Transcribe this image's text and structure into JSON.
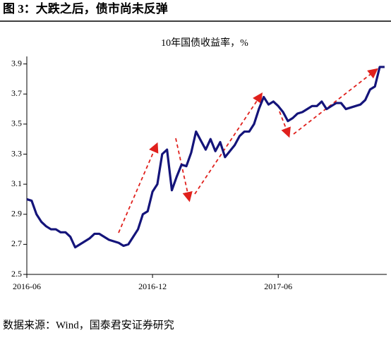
{
  "header": {
    "title": "图 3：大跌之后，债市尚未反弹"
  },
  "chart_data": {
    "type": "line",
    "title": "10年国债收益率，%",
    "categories": [
      "2016-06",
      null,
      null,
      null,
      null,
      null,
      null,
      null,
      null,
      null,
      null,
      null,
      null,
      null,
      null,
      null,
      null,
      null,
      null,
      null,
      null,
      null,
      null,
      null,
      null,
      null,
      "2016-12",
      null,
      null,
      null,
      null,
      null,
      null,
      null,
      null,
      null,
      null,
      null,
      null,
      null,
      null,
      null,
      null,
      null,
      null,
      null,
      null,
      null,
      null,
      null,
      null,
      null,
      "2017-06",
      null,
      null,
      null,
      null,
      null,
      null,
      null,
      null,
      null,
      null,
      null,
      null,
      null,
      null,
      null,
      null,
      null,
      null,
      null,
      null,
      null,
      null
    ],
    "series": [
      {
        "name": "10年国债收益率",
        "color": "#14147a",
        "values": [
          3.0,
          2.99,
          2.9,
          2.85,
          2.82,
          2.8,
          2.8,
          2.78,
          2.78,
          2.75,
          2.68,
          2.7,
          2.72,
          2.74,
          2.77,
          2.77,
          2.75,
          2.73,
          2.72,
          2.71,
          2.69,
          2.7,
          2.75,
          2.8,
          2.9,
          2.92,
          3.05,
          3.1,
          3.3,
          3.33,
          3.06,
          3.15,
          3.23,
          3.22,
          3.31,
          3.45,
          3.39,
          3.33,
          3.4,
          3.32,
          3.38,
          3.28,
          3.32,
          3.36,
          3.42,
          3.45,
          3.45,
          3.5,
          3.6,
          3.68,
          3.63,
          3.65,
          3.62,
          3.58,
          3.52,
          3.54,
          3.57,
          3.58,
          3.6,
          3.62,
          3.62,
          3.65,
          3.6,
          3.62,
          3.64,
          3.64,
          3.6,
          3.61,
          3.62,
          3.63,
          3.66,
          3.73,
          3.75,
          3.88,
          3.88
        ]
      }
    ],
    "ylim": [
      2.5,
      3.95
    ],
    "yticks": [
      2.5,
      2.7,
      2.9,
      3.1,
      3.3,
      3.5,
      3.7,
      3.9
    ],
    "grid": false
  },
  "footer": {
    "source": "数据来源：Wind，国泰君安证券研究"
  }
}
